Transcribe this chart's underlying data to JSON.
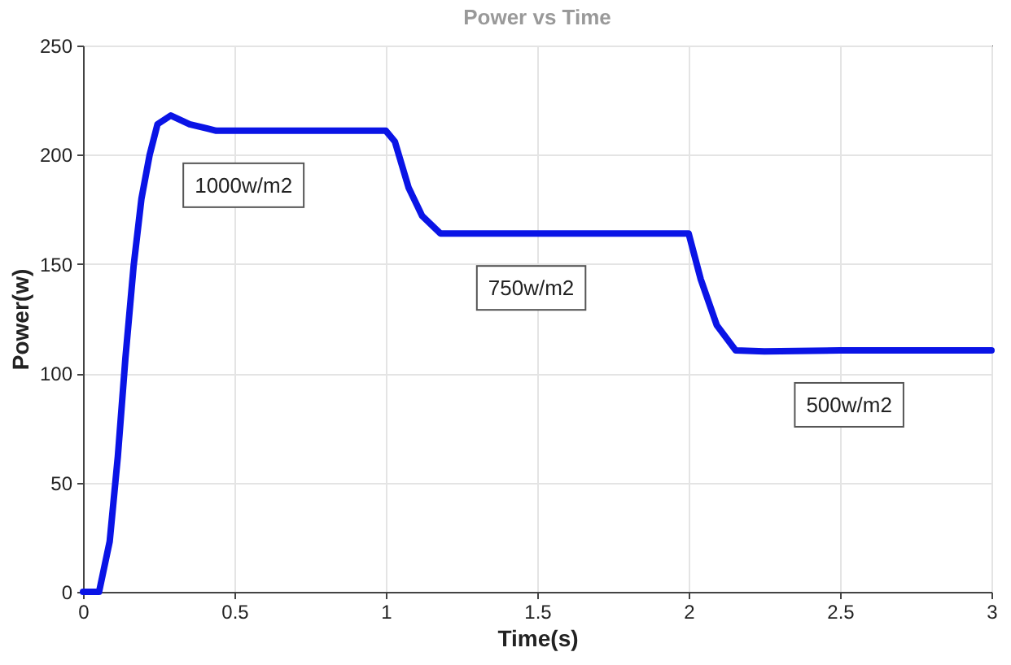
{
  "chart_data": {
    "type": "line",
    "title": "Power vs Time",
    "xlabel": "Time(s)",
    "ylabel": "Power(w)",
    "xlim": [
      0,
      3
    ],
    "xticks": [
      0,
      0.5,
      1,
      1.5,
      2,
      2.5,
      3
    ],
    "ylim": [
      0,
      250
    ],
    "yticks": [
      0,
      50,
      100,
      150,
      200,
      250
    ],
    "grid": true,
    "series": [
      {
        "color": "#0a14e6",
        "x": [
          0,
          0.053,
          0.088,
          0.115,
          0.14,
          0.167,
          0.193,
          0.22,
          0.246,
          0.29,
          0.352,
          0.44,
          0.6,
          0.8,
          1.0,
          1.03,
          1.075,
          1.12,
          1.18,
          1.3,
          1.6,
          2.0,
          2.04,
          2.093,
          2.155,
          2.25,
          2.5,
          3.0
        ],
        "values": [
          0,
          0,
          23,
          62,
          107,
          149,
          180,
          200,
          214,
          218,
          214,
          211,
          211,
          211,
          211,
          206,
          185,
          172,
          164,
          164,
          164,
          164,
          143,
          122,
          110.5,
          110,
          110.5,
          110.5
        ]
      }
    ],
    "annotations": [
      {
        "text": "1000w/m2",
        "x": 0.53,
        "y": 211
      },
      {
        "text": "750w/m2",
        "x": 1.48,
        "y": 164
      },
      {
        "text": "500w/m2",
        "x": 2.53,
        "y": 110.5
      }
    ]
  }
}
